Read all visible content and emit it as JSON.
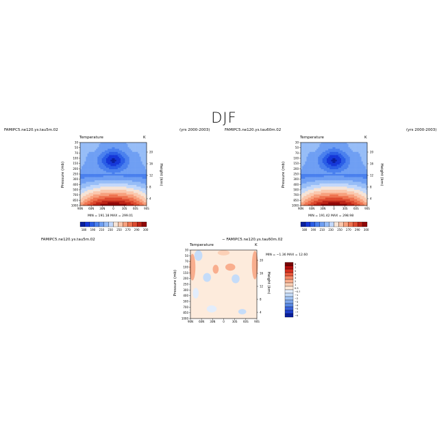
{
  "figure": {
    "title": "DJF",
    "panels": [
      {
        "id": "p1",
        "left_string": "FAMIPC5.ne120.ys.tau5m.02",
        "right_string": "(yrs 2000-2003)",
        "center_string": "Temperature",
        "units": "K",
        "ylabel_left": "Pressure (mb)",
        "ylabel_right": "Height (km)",
        "stats": "MIN = 191.18   MAX = 299.01",
        "colorbar_labels": [
          "180",
          "190",
          "210",
          "230",
          "250",
          "270",
          "290",
          "300"
        ]
      },
      {
        "id": "p2",
        "left_string": "FAMIPC5.ne120.ys.tau60m.02",
        "right_string": "(yrs 2000-2003)",
        "center_string": "Temperature",
        "units": "K",
        "ylabel_left": "Pressure (mb)",
        "ylabel_right": "Height (km)",
        "stats": "MIN = 191.42   MAX = 298.98",
        "colorbar_labels": [
          "180",
          "190",
          "210",
          "230",
          "250",
          "270",
          "290",
          "300"
        ]
      },
      {
        "id": "p3",
        "left_string": "FAMIPC5.ne120.ys.tau5m.02",
        "center_title": "− FAMIPC5.ne120.ys.tau60m.02",
        "center_string": "Temperature",
        "units": "K",
        "ylabel_left": "Pressure (mb)",
        "ylabel_right": "Height (km)",
        "stats": "MIN = −1.36   MAX = 12.60",
        "colorbar_labels": [
          "9",
          "7",
          "5",
          "4",
          "3",
          "2",
          "1",
          "0.5",
          "−0.5",
          "−1",
          "−2",
          "−3",
          "−4",
          "−5",
          "−7",
          "−9"
        ]
      }
    ]
  },
  "chart_data": [
    {
      "type": "heatmap",
      "title": "Temperature",
      "xlabel": "",
      "ylabel": "Pressure (mb)",
      "ylabel_right": "Height (km)",
      "x_ticks": [
        "90N",
        "60N",
        "30N",
        "0",
        "30S",
        "60S",
        "90S"
      ],
      "y_ticks": [
        "30",
        "50",
        "70",
        "100",
        "150",
        "200",
        "250",
        "300",
        "400",
        "500",
        "700",
        "850",
        "1000"
      ],
      "y_right_ticks": [
        "20",
        "16",
        "12",
        "8",
        "4"
      ],
      "min": 191.18,
      "max": 299.01,
      "colorbar": [
        180,
        190,
        210,
        230,
        250,
        270,
        290,
        300
      ]
    },
    {
      "type": "heatmap",
      "title": "Temperature",
      "xlabel": "",
      "ylabel": "Pressure (mb)",
      "ylabel_right": "Height (km)",
      "x_ticks": [
        "90N",
        "60N",
        "30N",
        "0",
        "30S",
        "60S",
        "90S"
      ],
      "y_ticks": [
        "30",
        "50",
        "70",
        "100",
        "150",
        "200",
        "250",
        "300",
        "400",
        "500",
        "700",
        "850",
        "1000"
      ],
      "y_right_ticks": [
        "20",
        "16",
        "12",
        "8",
        "4"
      ],
      "min": 191.42,
      "max": 298.98,
      "colorbar": [
        180,
        190,
        210,
        230,
        250,
        270,
        290,
        300
      ]
    },
    {
      "type": "heatmap",
      "title": "Temperature",
      "xlabel": "",
      "ylabel": "Pressure (mb)",
      "ylabel_right": "Height (km)",
      "x_ticks": [
        "90N",
        "60N",
        "30N",
        "0",
        "30S",
        "60S",
        "90S"
      ],
      "y_ticks": [
        "30",
        "50",
        "70",
        "100",
        "150",
        "200",
        "250",
        "300",
        "400",
        "500",
        "700",
        "850",
        "1000"
      ],
      "y_right_ticks": [
        "20",
        "16",
        "12",
        "8",
        "4"
      ],
      "min": -1.36,
      "max": 12.6,
      "colorbar": [
        9,
        7,
        5,
        4,
        3,
        2,
        1,
        0.5,
        -0.5,
        -1,
        -2,
        -3,
        -4,
        -5,
        -7,
        -9
      ]
    }
  ],
  "colors": {
    "seq_cmap": [
      "#0a1f9e",
      "#1537d8",
      "#2a5ee6",
      "#4a80ee",
      "#6f9ff3",
      "#97bdf7",
      "#c2d8fb",
      "#f6e4d7",
      "#fbc7ac",
      "#f7a07d",
      "#ee7451",
      "#dc4a2f",
      "#bd2416",
      "#900808"
    ],
    "diff_cmap": [
      "#7a0000",
      "#b10c0c",
      "#d7301f",
      "#ec5a3d",
      "#f58866",
      "#f9ae8e",
      "#fcd0b6",
      "#fdebdc",
      "#e3edfb",
      "#c5dcf9",
      "#a2c4f4",
      "#7fa8ee",
      "#5a8ae6",
      "#3a63dc",
      "#1f3fcc",
      "#0a1f9e"
    ]
  }
}
